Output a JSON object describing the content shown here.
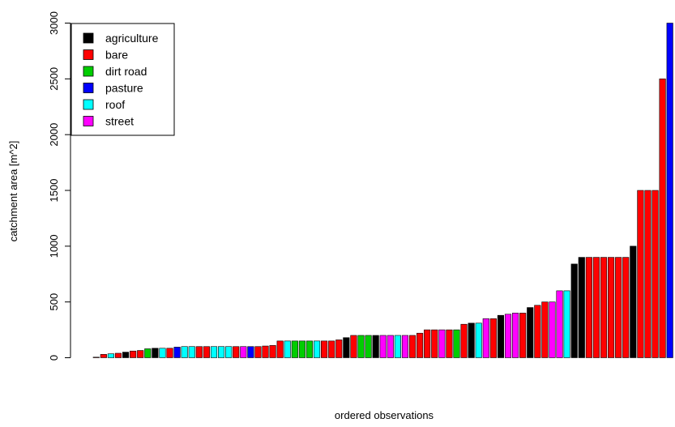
{
  "chart_data": {
    "type": "bar",
    "xlabel": "ordered observations",
    "ylabel": "catchment area [m^2]",
    "ylim": [
      0,
      3000
    ],
    "yticks": [
      0,
      500,
      1000,
      1500,
      2000,
      2500,
      3000
    ],
    "legend_position": "top-left",
    "legend": [
      {
        "name": "agriculture",
        "color": "#000000"
      },
      {
        "name": "bare",
        "color": "#ff0000"
      },
      {
        "name": "dirt road",
        "color": "#00cd00"
      },
      {
        "name": "pasture",
        "color": "#0000ff"
      },
      {
        "name": "roof",
        "color": "#00ffff"
      },
      {
        "name": "street",
        "color": "#ff00ff"
      }
    ],
    "landuse": [
      "bare",
      "bare",
      "roof",
      "bare",
      "agriculture",
      "bare",
      "bare",
      "dirt road",
      "agriculture",
      "roof",
      "bare",
      "pasture",
      "roof",
      "roof",
      "bare",
      "bare",
      "roof",
      "roof",
      "roof",
      "bare",
      "street",
      "pasture",
      "bare",
      "bare",
      "bare",
      "bare",
      "roof",
      "dirt road",
      "dirt road",
      "dirt road",
      "roof",
      "bare",
      "bare",
      "bare",
      "agriculture",
      "bare",
      "dirt road",
      "dirt road",
      "agriculture",
      "street",
      "street",
      "roof",
      "street",
      "bare",
      "bare",
      "bare",
      "bare",
      "street",
      "bare",
      "dirt road",
      "bare",
      "agriculture",
      "roof",
      "street",
      "bare",
      "agriculture",
      "street",
      "street",
      "bare",
      "agriculture",
      "bare",
      "bare",
      "street",
      "street",
      "roof",
      "agriculture",
      "agriculture",
      "bare",
      "bare",
      "bare",
      "bare",
      "bare",
      "bare",
      "agriculture",
      "bare",
      "bare",
      "bare",
      "bare",
      "pasture"
    ],
    "values": [
      5,
      30,
      35,
      40,
      50,
      60,
      65,
      80,
      85,
      85,
      85,
      95,
      100,
      100,
      100,
      100,
      100,
      100,
      100,
      100,
      100,
      100,
      100,
      105,
      110,
      150,
      150,
      150,
      150,
      150,
      150,
      150,
      150,
      160,
      180,
      200,
      200,
      200,
      200,
      200,
      200,
      200,
      200,
      200,
      220,
      250,
      250,
      250,
      250,
      250,
      300,
      310,
      310,
      350,
      350,
      380,
      390,
      400,
      400,
      450,
      470,
      500,
      500,
      600,
      600,
      840,
      900,
      900,
      900,
      900,
      900,
      900,
      900,
      1000,
      1500,
      1500,
      1500,
      2500,
      3000
    ]
  }
}
